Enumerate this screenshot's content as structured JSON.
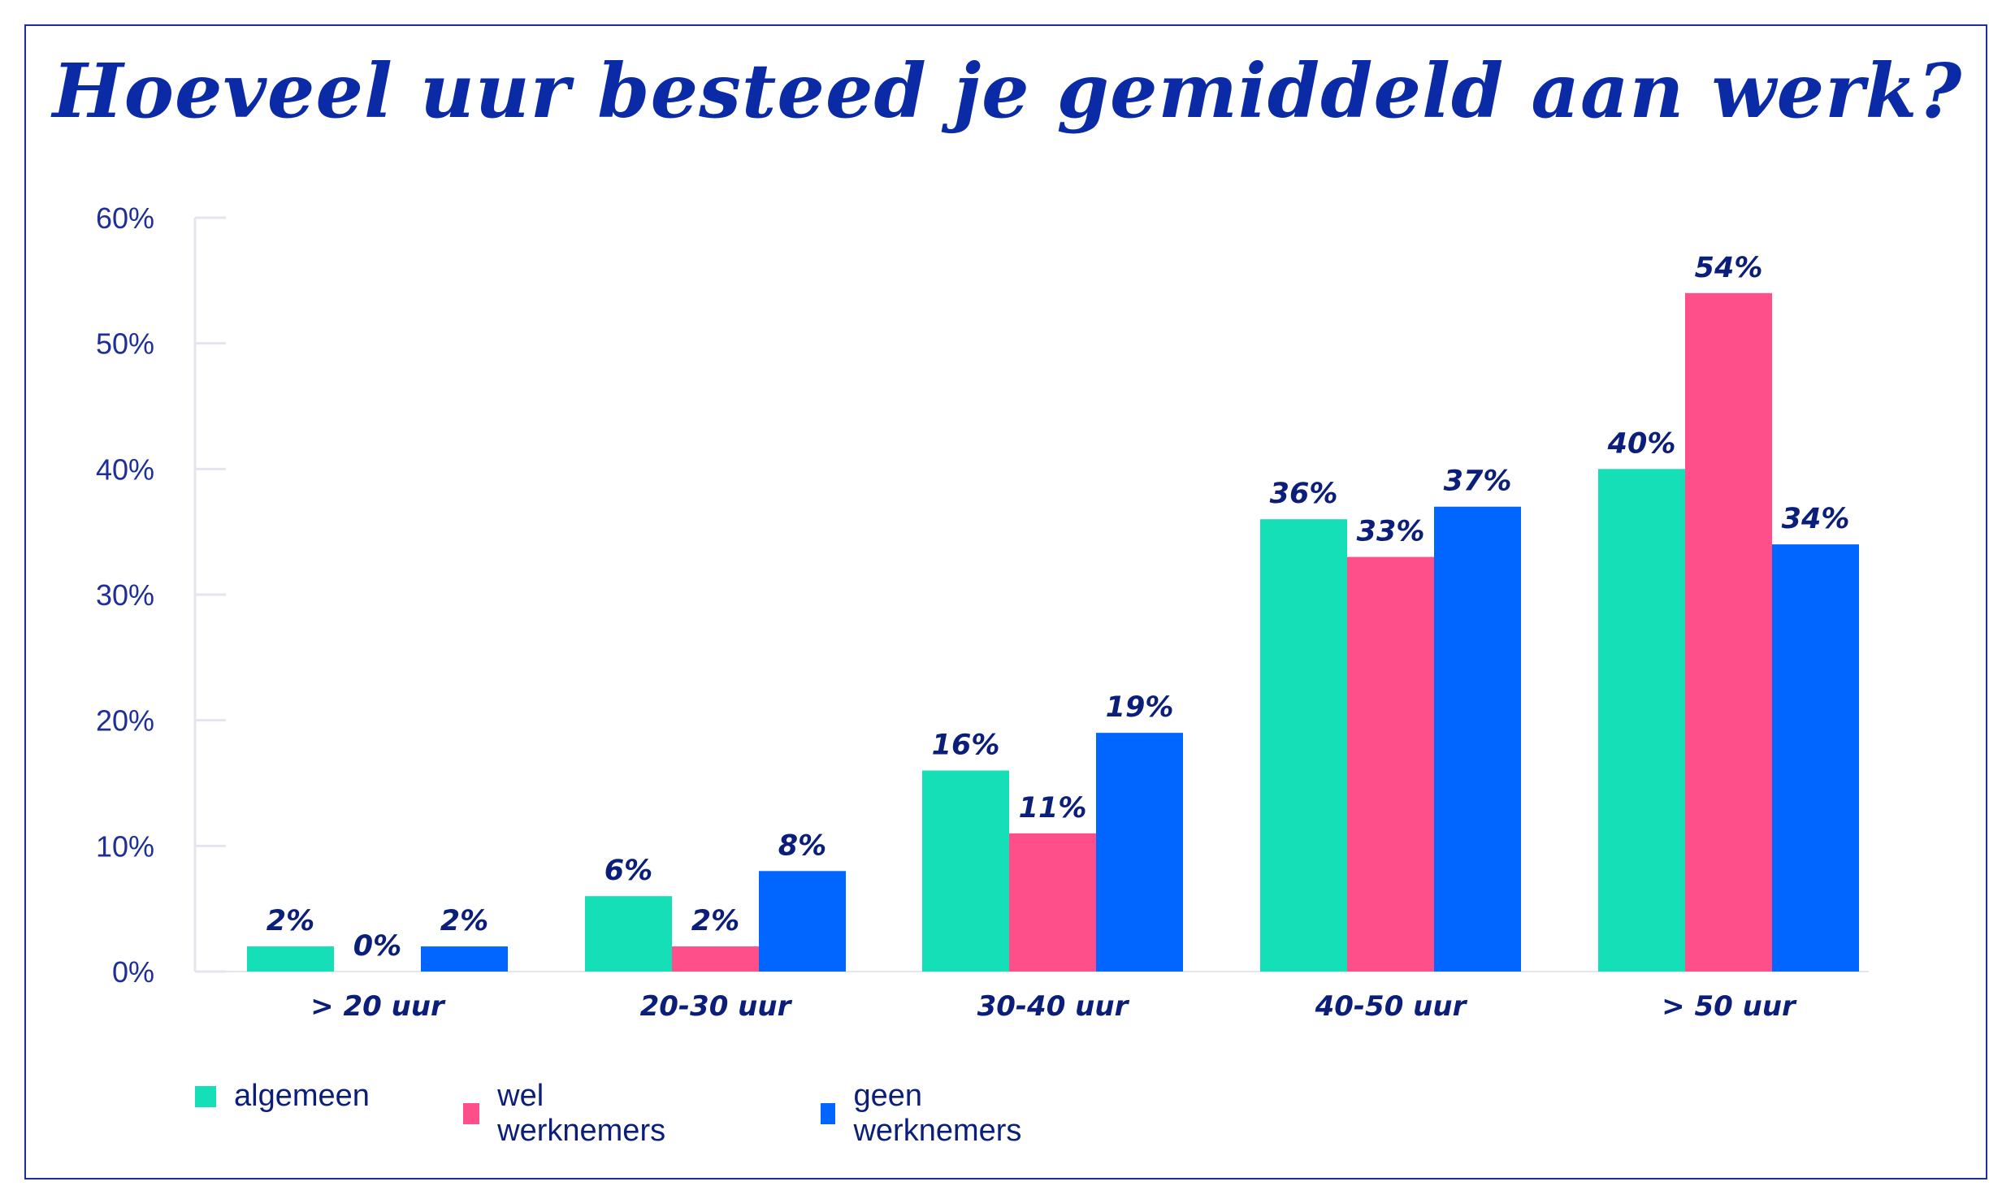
{
  "title": "Hoeveel uur besteed je gemiddeld aan werk?",
  "chart_data": {
    "type": "bar",
    "title": "Hoeveel uur besteed je gemiddeld aan werk?",
    "categories": [
      "> 20 uur",
      "20-30 uur",
      "30-40 uur",
      "40-50 uur",
      "> 50 uur"
    ],
    "series": [
      {
        "name": "algemeen",
        "color": "#15dfb7",
        "values": [
          2,
          6,
          16,
          36,
          40
        ],
        "labels": [
          "2%",
          "6%",
          "16%",
          "36%",
          "40%"
        ]
      },
      {
        "name": "wel werknemers",
        "color": "#ff4f8b",
        "values": [
          0,
          2,
          11,
          33,
          54
        ],
        "labels": [
          "0%",
          "2%",
          "11%",
          "33%",
          "54%"
        ]
      },
      {
        "name": "geen werknemers",
        "color": "#0066ff",
        "values": [
          2,
          8,
          19,
          37,
          34
        ],
        "labels": [
          "2%",
          "8%",
          "19%",
          "37%",
          "34%"
        ]
      }
    ],
    "yticks": [
      "0%",
      "10%",
      "20%",
      "30%",
      "40%",
      "50%",
      "60%"
    ],
    "ylim": [
      0,
      60
    ],
    "xlabel": "",
    "ylabel": "",
    "grid": false,
    "legend_position": "bottom-left"
  }
}
